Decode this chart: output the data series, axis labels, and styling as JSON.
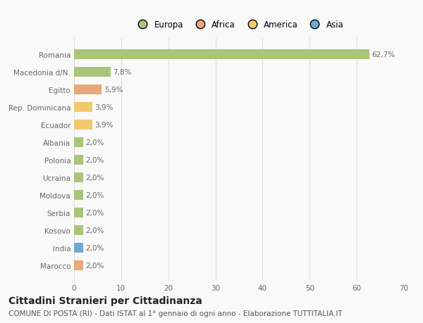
{
  "categories": [
    "Marocco",
    "India",
    "Kosovo",
    "Serbia",
    "Moldova",
    "Ucraina",
    "Polonia",
    "Albania",
    "Ecuador",
    "Rep. Dominicana",
    "Egitto",
    "Macedonia d/N.",
    "Romania"
  ],
  "values": [
    2.0,
    2.0,
    2.0,
    2.0,
    2.0,
    2.0,
    2.0,
    2.0,
    3.9,
    3.9,
    5.9,
    7.8,
    62.7
  ],
  "bar_colors": [
    "#e8a87c",
    "#6fa8d4",
    "#a8c57a",
    "#a8c57a",
    "#a8c57a",
    "#a8c57a",
    "#a8c57a",
    "#a8c57a",
    "#f0c96e",
    "#f0c96e",
    "#e8a87c",
    "#a8c57a",
    "#a8c57a"
  ],
  "labels": [
    "2,0%",
    "2,0%",
    "2,0%",
    "2,0%",
    "2,0%",
    "2,0%",
    "2,0%",
    "2,0%",
    "3,9%",
    "3,9%",
    "5,9%",
    "7,8%",
    "62,7%"
  ],
  "legend_labels": [
    "Europa",
    "Africa",
    "America",
    "Asia"
  ],
  "legend_colors": [
    "#a8c57a",
    "#e8a87c",
    "#f0c96e",
    "#6fa8d4"
  ],
  "title": "Cittadini Stranieri per Cittadinanza",
  "subtitle": "COMUNE DI POSTA (RI) - Dati ISTAT al 1° gennaio di ogni anno - Elaborazione TUTTITALIA.IT",
  "xlim": [
    0,
    70
  ],
  "xticks": [
    0,
    10,
    20,
    30,
    40,
    50,
    60,
    70
  ],
  "background_color": "#f9f9f9",
  "grid_color": "#dddddd",
  "bar_height": 0.55,
  "title_fontsize": 10,
  "subtitle_fontsize": 7.5,
  "label_fontsize": 7.5,
  "tick_fontsize": 7.5,
  "legend_fontsize": 8.5
}
